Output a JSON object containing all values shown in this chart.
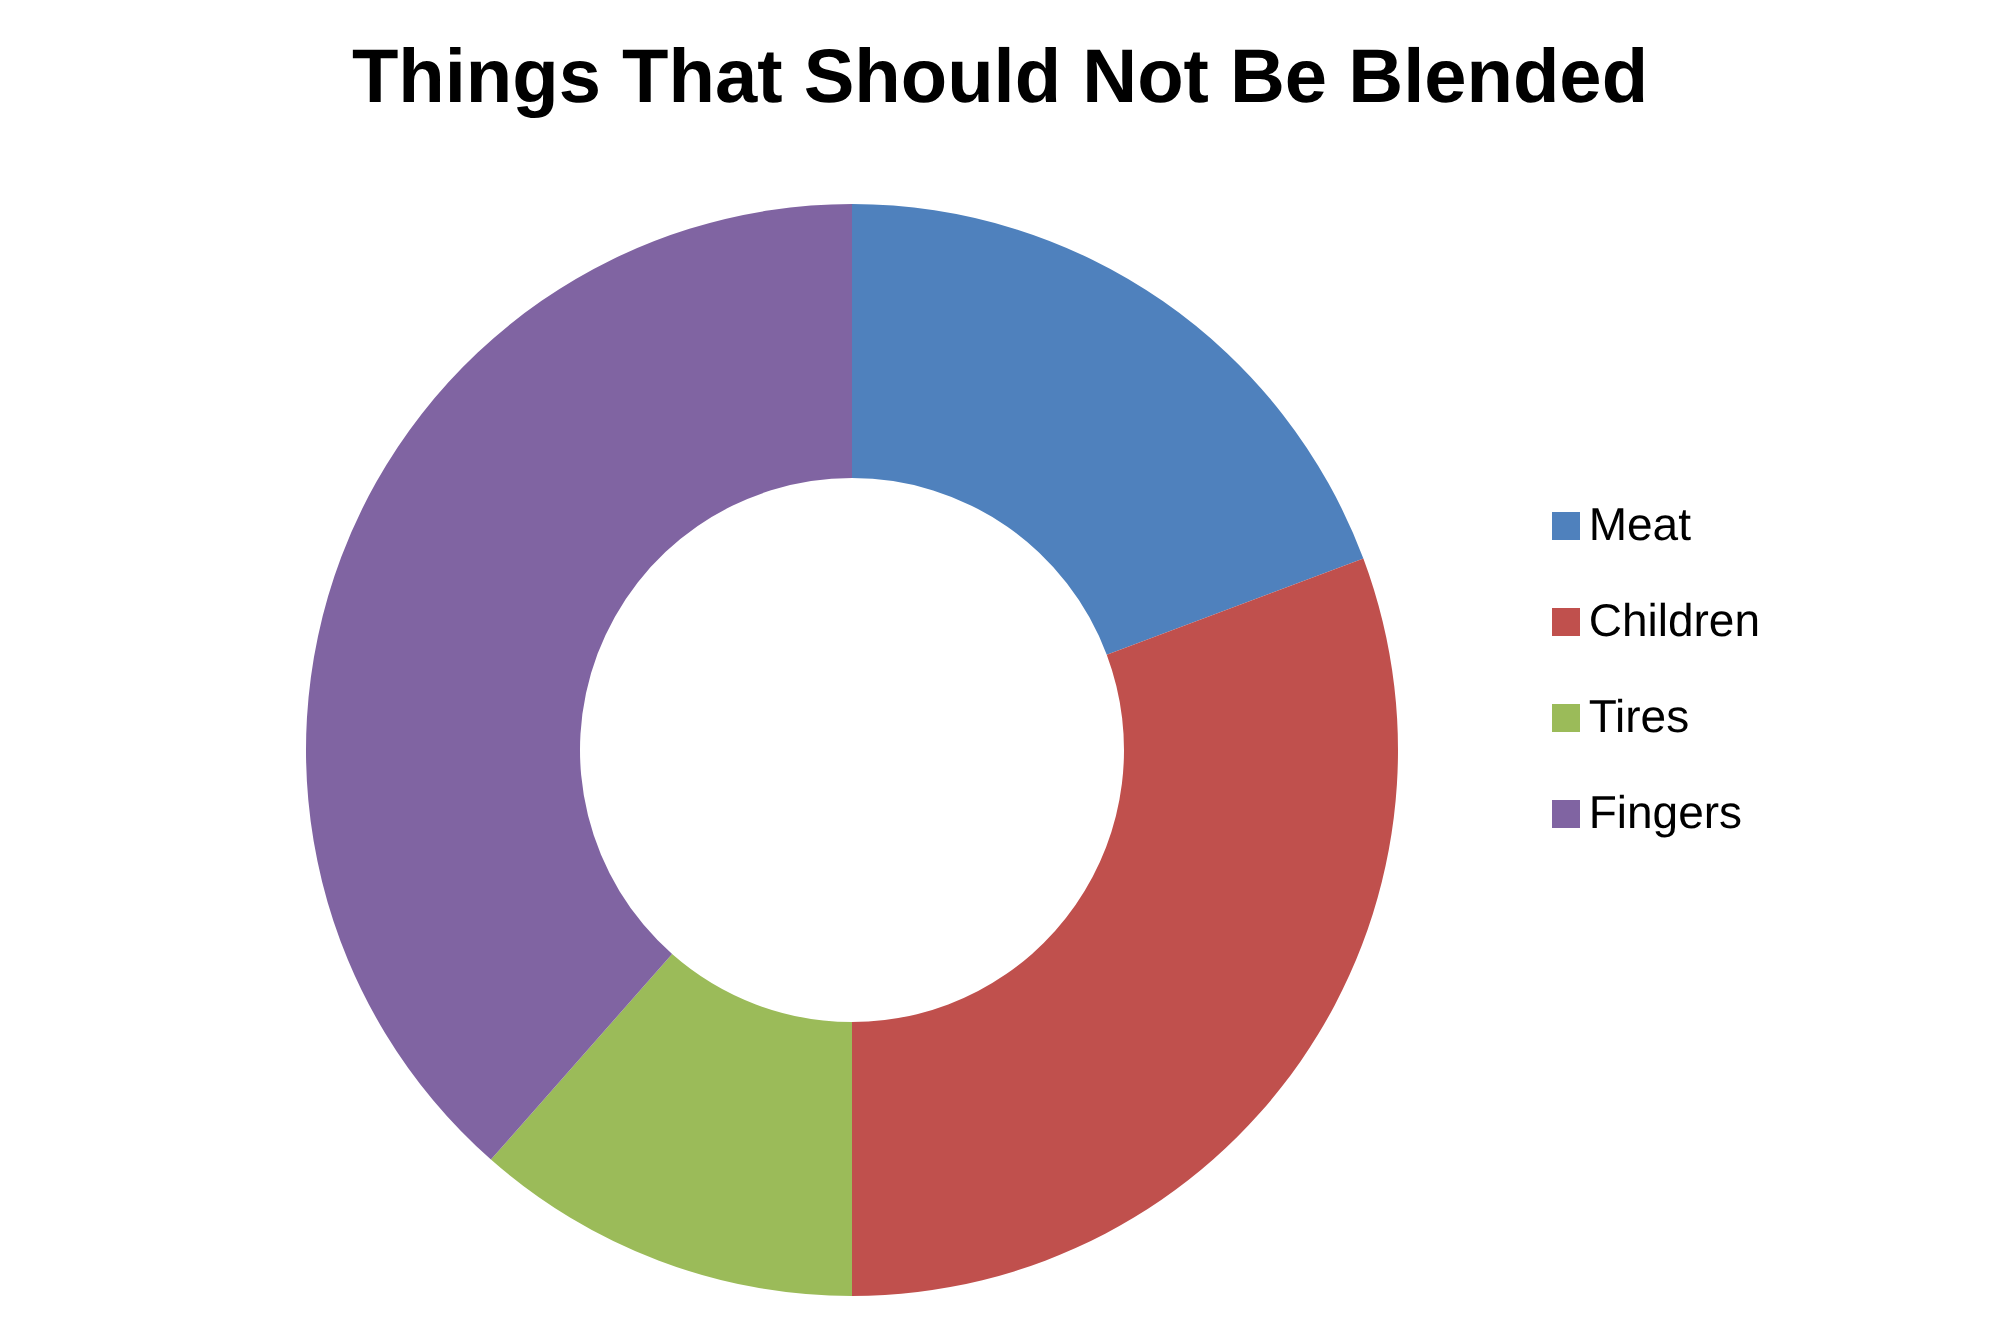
{
  "chart_data": {
    "type": "donut",
    "title": "Things That Should Not Be Blended",
    "categories": [
      "Meat",
      "Children",
      "Tires",
      "Fingers"
    ],
    "values": [
      19.3,
      30.7,
      11.5,
      38.5
    ],
    "colors": [
      "#4f81bd",
      "#c0504d",
      "#9bbb59",
      "#8064a2"
    ],
    "legend": "right"
  }
}
